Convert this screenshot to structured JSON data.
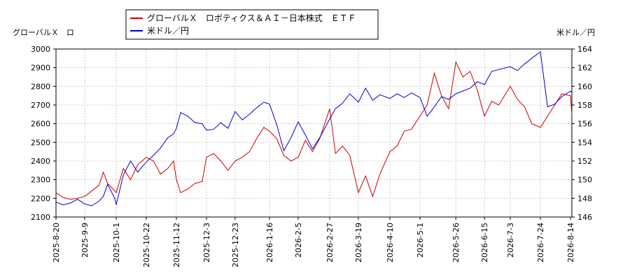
{
  "chart_data": {
    "type": "line",
    "title": "",
    "y_left_label": "グローバルＸ　ロ",
    "y_right_label": "米ドル／円",
    "legend": {
      "placement": "top-center",
      "entries": [
        "グローバルＸ　ロボティクス＆ＡＩ－日本株式　ＥＴＦ",
        "米ドル／円"
      ]
    },
    "y_left_range": [
      2100,
      3000
    ],
    "y_left_ticks": [
      "2100",
      "2200",
      "2300",
      "2400",
      "2500",
      "2600",
      "2700",
      "2800",
      "2900",
      "3000"
    ],
    "y_right_range": [
      146,
      164
    ],
    "y_right_ticks": [
      "146",
      "148",
      "150",
      "152",
      "154",
      "156",
      "158",
      "160",
      "162",
      "164"
    ],
    "x_range": [
      "2025-8-20",
      "2026-8-15"
    ],
    "x_ticks": [
      "2025-8-20",
      "2025-9-9",
      "2025-10-1",
      "2025-10-22",
      "2025-11-12",
      "2025-12-3",
      "2025-12-23",
      "2026-1-16",
      "2026-2-5",
      "2026-2-27",
      "2026-3-19",
      "2026-4-10",
      "2026-5-1",
      "2026-5-26",
      "2026-6-15",
      "2026-7-3",
      "2026-7-24",
      "2026-8-14"
    ],
    "grid": true,
    "series": [
      {
        "name": "グローバルＸ　ロボティクス＆ＡＩ－日本株式　ＥＴＦ",
        "axis": "left",
        "color": "#cc0000",
        "points": [
          [
            "2025-8-20",
            2230
          ],
          [
            "2025-8-25",
            2205
          ],
          [
            "2025-8-30",
            2195
          ],
          [
            "2025-9-4",
            2200
          ],
          [
            "2025-9-9",
            2210
          ],
          [
            "2025-9-14",
            2240
          ],
          [
            "2025-9-19",
            2270
          ],
          [
            "2025-9-22",
            2340
          ],
          [
            "2025-9-25",
            2280
          ],
          [
            "2025-9-30",
            2240
          ],
          [
            "2025-10-1",
            2230
          ],
          [
            "2025-10-6",
            2360
          ],
          [
            "2025-10-11",
            2300
          ],
          [
            "2025-10-16",
            2380
          ],
          [
            "2025-10-22",
            2420
          ],
          [
            "2025-10-27",
            2400
          ],
          [
            "2025-11-1",
            2330
          ],
          [
            "2025-11-6",
            2360
          ],
          [
            "2025-11-10",
            2400
          ],
          [
            "2025-11-12",
            2300
          ],
          [
            "2025-11-15",
            2230
          ],
          [
            "2025-11-20",
            2250
          ],
          [
            "2025-11-25",
            2280
          ],
          [
            "2025-11-30",
            2290
          ],
          [
            "2025-12-3",
            2420
          ],
          [
            "2025-12-8",
            2440
          ],
          [
            "2025-12-13",
            2400
          ],
          [
            "2025-12-18",
            2350
          ],
          [
            "2025-12-23",
            2400
          ],
          [
            "2025-12-28",
            2420
          ],
          [
            "2026-1-2",
            2450
          ],
          [
            "2026-1-7",
            2520
          ],
          [
            "2026-1-12",
            2580
          ],
          [
            "2026-1-16",
            2560
          ],
          [
            "2026-1-21",
            2520
          ],
          [
            "2026-1-26",
            2430
          ],
          [
            "2026-1-31",
            2400
          ],
          [
            "2026-2-5",
            2420
          ],
          [
            "2026-2-10",
            2510
          ],
          [
            "2026-2-15",
            2450
          ],
          [
            "2026-2-20",
            2520
          ],
          [
            "2026-2-27",
            2680
          ],
          [
            "2026-3-3",
            2440
          ],
          [
            "2026-3-8",
            2480
          ],
          [
            "2026-3-13",
            2430
          ],
          [
            "2026-3-19",
            2230
          ],
          [
            "2026-3-24",
            2320
          ],
          [
            "2026-3-29",
            2210
          ],
          [
            "2026-4-3",
            2330
          ],
          [
            "2026-4-10",
            2450
          ],
          [
            "2026-4-15",
            2480
          ],
          [
            "2026-4-20",
            2560
          ],
          [
            "2026-4-25",
            2570
          ],
          [
            "2026-5-1",
            2640
          ],
          [
            "2026-5-6",
            2700
          ],
          [
            "2026-5-11",
            2870
          ],
          [
            "2026-5-16",
            2750
          ],
          [
            "2026-5-21",
            2680
          ],
          [
            "2026-5-26",
            2930
          ],
          [
            "2026-5-31",
            2850
          ],
          [
            "2026-6-5",
            2880
          ],
          [
            "2026-6-10",
            2780
          ],
          [
            "2026-6-15",
            2640
          ],
          [
            "2026-6-20",
            2720
          ],
          [
            "2026-6-25",
            2700
          ],
          [
            "2026-7-3",
            2800
          ],
          [
            "2026-7-8",
            2730
          ],
          [
            "2026-7-13",
            2690
          ],
          [
            "2026-7-18",
            2600
          ],
          [
            "2026-7-24",
            2580
          ],
          [
            "2026-7-29",
            2640
          ],
          [
            "2026-8-3",
            2700
          ],
          [
            "2026-8-8",
            2760
          ],
          [
            "2026-8-14",
            2750
          ],
          [
            "2026-8-15",
            2650
          ]
        ]
      },
      {
        "name": "米ドル／円",
        "axis": "right",
        "color": "#0000cc",
        "points": [
          [
            "2025-8-20",
            147.6
          ],
          [
            "2025-8-25",
            147.3
          ],
          [
            "2025-8-30",
            147.5
          ],
          [
            "2025-9-4",
            147.9
          ],
          [
            "2025-9-9",
            147.4
          ],
          [
            "2025-9-14",
            147.2
          ],
          [
            "2025-9-19",
            147.7
          ],
          [
            "2025-9-22",
            148.2
          ],
          [
            "2025-9-25",
            149.5
          ],
          [
            "2025-9-30",
            148.0
          ],
          [
            "2025-10-1",
            147.3
          ],
          [
            "2025-10-6",
            150.5
          ],
          [
            "2025-10-11",
            152.0
          ],
          [
            "2025-10-16",
            150.8
          ],
          [
            "2025-10-22",
            151.9
          ],
          [
            "2025-10-27",
            152.6
          ],
          [
            "2025-11-1",
            153.4
          ],
          [
            "2025-11-6",
            154.5
          ],
          [
            "2025-11-10",
            154.9
          ],
          [
            "2025-11-12",
            155.5
          ],
          [
            "2025-11-15",
            157.2
          ],
          [
            "2025-11-20",
            156.8
          ],
          [
            "2025-11-25",
            156.1
          ],
          [
            "2025-11-30",
            156.0
          ],
          [
            "2025-12-3",
            155.3
          ],
          [
            "2025-12-8",
            155.4
          ],
          [
            "2025-12-13",
            156.1
          ],
          [
            "2025-12-18",
            155.5
          ],
          [
            "2025-12-23",
            157.3
          ],
          [
            "2025-12-28",
            156.4
          ],
          [
            "2026-1-2",
            157.0
          ],
          [
            "2026-1-7",
            157.7
          ],
          [
            "2026-1-12",
            158.3
          ],
          [
            "2026-1-16",
            158.1
          ],
          [
            "2026-1-21",
            155.9
          ],
          [
            "2026-1-26",
            153.1
          ],
          [
            "2026-1-31",
            154.5
          ],
          [
            "2026-2-5",
            156.2
          ],
          [
            "2026-2-10",
            154.8
          ],
          [
            "2026-2-15",
            153.3
          ],
          [
            "2026-2-20",
            154.5
          ],
          [
            "2026-2-27",
            156.5
          ],
          [
            "2026-3-3",
            157.6
          ],
          [
            "2026-3-8",
            158.2
          ],
          [
            "2026-3-13",
            159.2
          ],
          [
            "2026-3-19",
            158.3
          ],
          [
            "2026-3-24",
            159.8
          ],
          [
            "2026-3-29",
            158.5
          ],
          [
            "2026-4-3",
            159.1
          ],
          [
            "2026-4-10",
            158.7
          ],
          [
            "2026-4-15",
            159.2
          ],
          [
            "2026-4-20",
            158.8
          ],
          [
            "2026-4-25",
            159.3
          ],
          [
            "2026-5-1",
            158.8
          ],
          [
            "2026-5-6",
            156.8
          ],
          [
            "2026-5-11",
            157.8
          ],
          [
            "2026-5-16",
            158.9
          ],
          [
            "2026-5-21",
            158.6
          ],
          [
            "2026-5-26",
            159.2
          ],
          [
            "2026-5-31",
            159.5
          ],
          [
            "2026-6-5",
            159.8
          ],
          [
            "2026-6-10",
            160.5
          ],
          [
            "2026-6-15",
            160.2
          ],
          [
            "2026-6-20",
            161.6
          ],
          [
            "2026-6-25",
            161.8
          ],
          [
            "2026-7-3",
            162.1
          ],
          [
            "2026-7-8",
            161.7
          ],
          [
            "2026-7-13",
            162.4
          ],
          [
            "2026-7-18",
            163.0
          ],
          [
            "2026-7-24",
            163.7
          ],
          [
            "2026-7-29",
            157.8
          ],
          [
            "2026-8-3",
            158.1
          ],
          [
            "2026-8-8",
            158.9
          ],
          [
            "2026-8-14",
            159.5
          ],
          [
            "2026-8-15",
            159.3
          ]
        ]
      }
    ]
  }
}
